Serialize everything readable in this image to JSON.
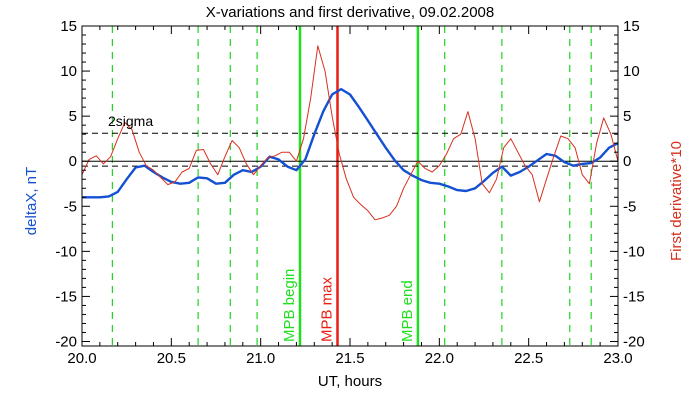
{
  "chart_data": {
    "type": "line",
    "title": "X-variations and first derivative, 09.02.2008",
    "xlabel": "UT, hours",
    "ylabel_left": "deltaX, nT",
    "ylabel_right": "First derivative*10",
    "xlim": [
      20.0,
      23.0
    ],
    "ylim": [
      -20.5,
      15
    ],
    "x_ticks": [
      20.0,
      20.5,
      21.0,
      21.5,
      22.0,
      22.5,
      23.0
    ],
    "x_tick_labels": [
      "20.0",
      "20.5",
      "21.0",
      "21.5",
      "22.0",
      "22.5",
      "23.0"
    ],
    "y_ticks": [
      -20,
      -15,
      -10,
      -5,
      0,
      5,
      10,
      15
    ],
    "y_tick_labels": [
      "-20",
      "-15",
      "-10",
      "-5",
      "0",
      "5",
      "10",
      "15"
    ],
    "sigma_label": "2sigma",
    "sigma_level": 3.1,
    "sigma_neg_level": -0.55,
    "colors": {
      "deltaX": "#1450d2",
      "derivative": "#d7301e",
      "begin_end": "#1fe01f",
      "max": "#e81e12",
      "axes": "#000000",
      "grid": "#1fd41f"
    },
    "markers": [
      {
        "label": "MPB begin",
        "x": 21.22,
        "role": "begin"
      },
      {
        "label": "MPB max",
        "x": 21.43,
        "role": "max"
      },
      {
        "label": "MPB end",
        "x": 21.88,
        "role": "end"
      }
    ],
    "dashed_x": [
      20.17,
      20.65,
      20.83,
      20.98,
      22.03,
      22.35,
      22.73,
      22.85
    ],
    "series": [
      {
        "name": "deltaX, nT",
        "axis": "left",
        "x": [
          20.0,
          20.05,
          20.1,
          20.15,
          20.2,
          20.25,
          20.3,
          20.35,
          20.4,
          20.45,
          20.5,
          20.55,
          20.6,
          20.65,
          20.7,
          20.75,
          20.8,
          20.85,
          20.9,
          20.95,
          21.0,
          21.05,
          21.1,
          21.15,
          21.2,
          21.25,
          21.3,
          21.35,
          21.4,
          21.45,
          21.5,
          21.55,
          21.6,
          21.65,
          21.7,
          21.75,
          21.8,
          21.85,
          21.9,
          21.95,
          22.0,
          22.05,
          22.1,
          22.15,
          22.2,
          22.25,
          22.3,
          22.35,
          22.4,
          22.45,
          22.5,
          22.55,
          22.6,
          22.65,
          22.7,
          22.75,
          22.8,
          22.85,
          22.9,
          22.95,
          23.0
        ],
        "values": [
          -4.0,
          -4.0,
          -4.0,
          -3.9,
          -3.4,
          -2.0,
          -0.7,
          -0.5,
          -1.2,
          -1.8,
          -2.3,
          -2.5,
          -2.4,
          -1.8,
          -1.9,
          -2.5,
          -2.4,
          -1.5,
          -1.0,
          -1.2,
          -0.6,
          0.5,
          0.2,
          -0.6,
          -1.0,
          0.2,
          3.0,
          5.5,
          7.4,
          8.0,
          7.4,
          6.0,
          4.5,
          3.0,
          1.5,
          0.1,
          -1.0,
          -1.6,
          -2.1,
          -2.4,
          -2.5,
          -2.8,
          -3.2,
          -3.3,
          -3.0,
          -2.2,
          -1.3,
          -0.6,
          -1.6,
          -1.2,
          -0.6,
          0.1,
          0.8,
          0.6,
          -0.1,
          -0.5,
          -0.3,
          -0.2,
          0.4,
          1.5,
          2.0
        ]
      },
      {
        "name": "First derivative*10",
        "axis": "right",
        "x": [
          20.0,
          20.04,
          20.08,
          20.12,
          20.16,
          20.2,
          20.24,
          20.28,
          20.32,
          20.36,
          20.4,
          20.44,
          20.48,
          20.52,
          20.56,
          20.6,
          20.64,
          20.68,
          20.72,
          20.76,
          20.8,
          20.84,
          20.88,
          20.92,
          20.96,
          21.0,
          21.04,
          21.08,
          21.12,
          21.16,
          21.2,
          21.24,
          21.28,
          21.32,
          21.36,
          21.4,
          21.44,
          21.48,
          21.52,
          21.56,
          21.6,
          21.64,
          21.68,
          21.72,
          21.76,
          21.8,
          21.84,
          21.88,
          21.92,
          21.96,
          22.0,
          22.04,
          22.08,
          22.12,
          22.16,
          22.2,
          22.24,
          22.28,
          22.32,
          22.36,
          22.4,
          22.44,
          22.48,
          22.52,
          22.56,
          22.6,
          22.64,
          22.68,
          22.72,
          22.76,
          22.8,
          22.84,
          22.88,
          22.92,
          22.96,
          23.0
        ],
        "values": [
          -1.5,
          0.2,
          0.6,
          -0.3,
          0.5,
          2.5,
          4.3,
          3.5,
          1.0,
          -0.5,
          -1.0,
          -1.8,
          -2.6,
          -2.3,
          -1.2,
          -0.8,
          1.2,
          1.3,
          -0.3,
          -1.5,
          0.5,
          2.3,
          1.5,
          -0.3,
          -1.5,
          -0.5,
          0.4,
          0.6,
          1.0,
          1.0,
          0.0,
          2.5,
          7.0,
          12.8,
          10.0,
          5.0,
          0.8,
          -2.0,
          -4.0,
          -4.8,
          -5.5,
          -6.5,
          -6.3,
          -6.0,
          -5.0,
          -3.0,
          -1.5,
          0.0,
          -0.8,
          -1.2,
          -0.5,
          0.8,
          2.5,
          3.0,
          5.5,
          2.5,
          -2.5,
          -3.5,
          -2.0,
          1.5,
          2.5,
          1.0,
          -0.5,
          -1.5,
          -4.5,
          -2.0,
          0.5,
          2.8,
          2.5,
          1.5,
          -1.5,
          -2.5,
          2.0,
          4.8,
          3.0,
          0.0
        ]
      }
    ]
  }
}
